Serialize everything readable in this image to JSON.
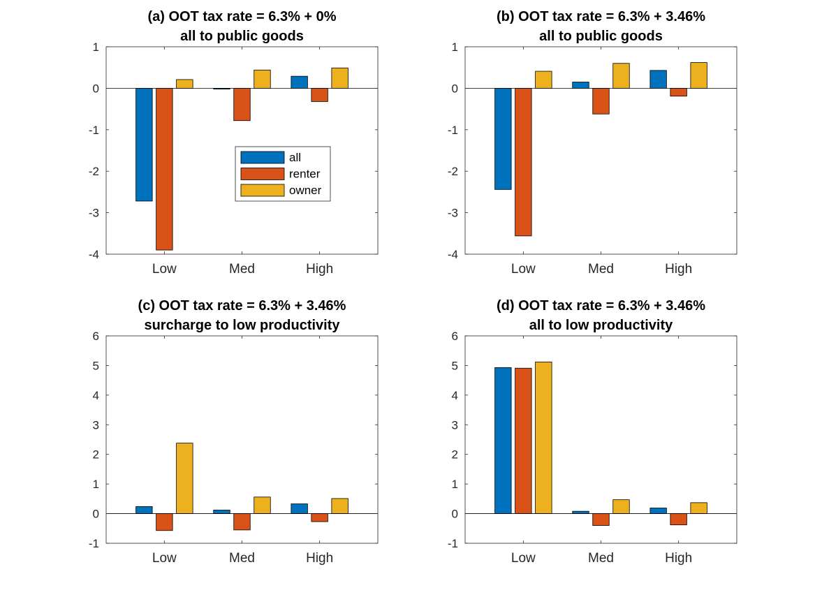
{
  "colors": {
    "all": "#0072BD",
    "renter": "#D95319",
    "owner": "#EDB120"
  },
  "chart_data": [
    {
      "type": "bar",
      "title": [
        "(a) OOT tax rate = 6.3% + 0%",
        "all to public goods"
      ],
      "categories": [
        "Low",
        "Med",
        "High"
      ],
      "series": [
        {
          "name": "all",
          "values": [
            -2.72,
            -0.02,
            0.29
          ]
        },
        {
          "name": "renter",
          "values": [
            -3.9,
            -0.78,
            -0.32
          ]
        },
        {
          "name": "owner",
          "values": [
            0.21,
            0.44,
            0.49
          ]
        }
      ],
      "ylim": [
        -4,
        1
      ],
      "yticks": [
        -4,
        -3,
        -2,
        -1,
        0,
        1
      ],
      "yticklabels": [
        "-4",
        "-3",
        "-2",
        "-1",
        "0",
        "1"
      ],
      "legend": {
        "position": "center",
        "entries": [
          "all",
          "renter",
          "owner"
        ]
      }
    },
    {
      "type": "bar",
      "title": [
        "(b) OOT tax rate = 6.3% + 3.46%",
        "all to public goods"
      ],
      "categories": [
        "Low",
        "Med",
        "High"
      ],
      "series": [
        {
          "name": "all",
          "values": [
            -2.44,
            0.15,
            0.43
          ]
        },
        {
          "name": "renter",
          "values": [
            -3.56,
            -0.62,
            -0.19
          ]
        },
        {
          "name": "owner",
          "values": [
            0.41,
            0.6,
            0.62
          ]
        }
      ],
      "ylim": [
        -4,
        1
      ],
      "yticks": [
        -4,
        -3,
        -2,
        -1,
        0,
        1
      ],
      "yticklabels": [
        "-4",
        "-3",
        "-2",
        "-1",
        "0",
        "1"
      ]
    },
    {
      "type": "bar",
      "title": [
        "(c) OOT tax rate = 6.3% + 3.46%",
        "surcharge to low productivity"
      ],
      "categories": [
        "Low",
        "Med",
        "High"
      ],
      "series": [
        {
          "name": "all",
          "values": [
            0.24,
            0.12,
            0.33
          ]
        },
        {
          "name": "renter",
          "values": [
            -0.57,
            -0.55,
            -0.27
          ]
        },
        {
          "name": "owner",
          "values": [
            2.38,
            0.56,
            0.51
          ]
        }
      ],
      "ylim": [
        -1,
        6
      ],
      "yticks": [
        -1,
        0,
        1,
        2,
        3,
        4,
        5,
        6
      ],
      "yticklabels": [
        "-1",
        "0",
        "1",
        "2",
        "3",
        "4",
        "5",
        "6"
      ]
    },
    {
      "type": "bar",
      "title": [
        "(d) OOT tax rate = 6.3% + 3.46%",
        "all to low productivity"
      ],
      "categories": [
        "Low",
        "Med",
        "High"
      ],
      "series": [
        {
          "name": "all",
          "values": [
            4.93,
            0.08,
            0.19
          ]
        },
        {
          "name": "renter",
          "values": [
            4.91,
            -0.4,
            -0.38
          ]
        },
        {
          "name": "owner",
          "values": [
            5.12,
            0.47,
            0.37
          ]
        }
      ],
      "ylim": [
        -1,
        6
      ],
      "yticks": [
        -1,
        0,
        1,
        2,
        3,
        4,
        5,
        6
      ],
      "yticklabels": [
        "-1",
        "0",
        "1",
        "2",
        "3",
        "4",
        "5",
        "6"
      ]
    }
  ]
}
